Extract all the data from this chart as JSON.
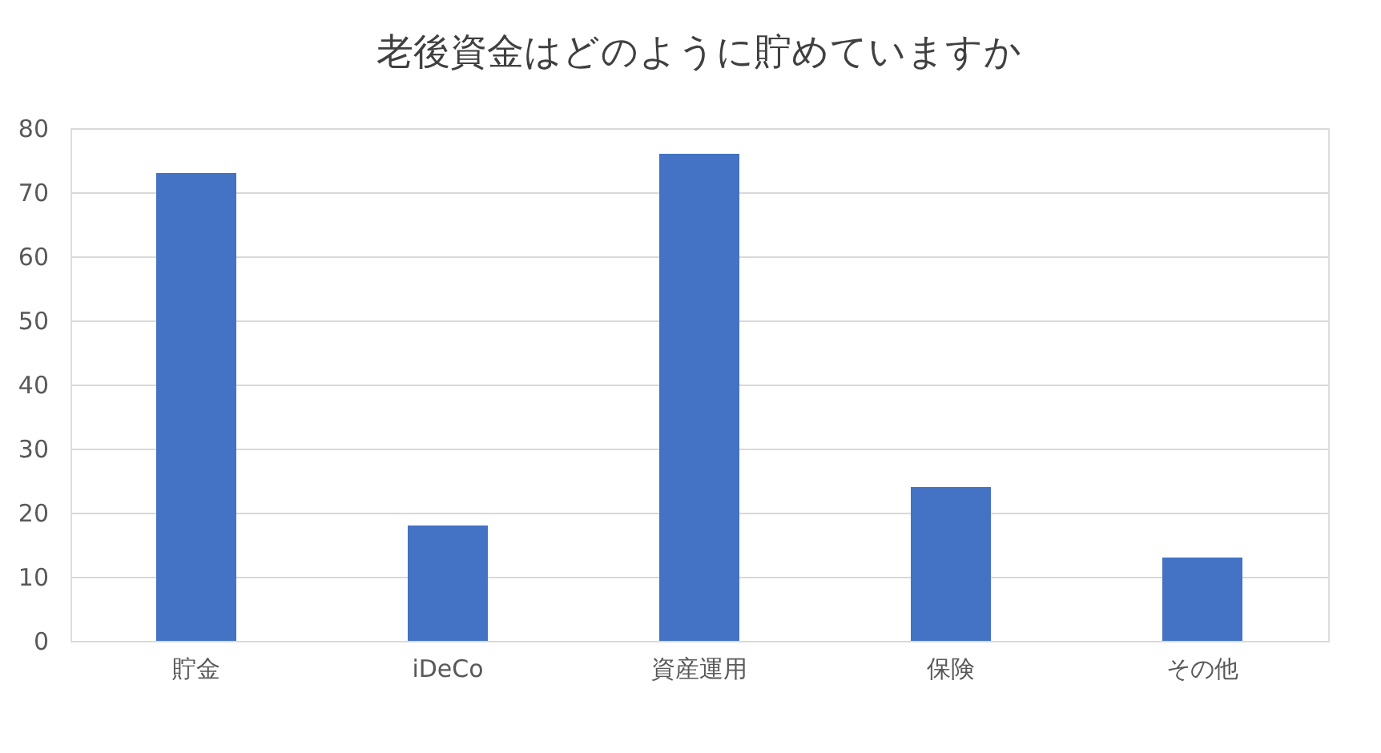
{
  "chart_data": {
    "type": "bar",
    "title": "老後資金はどのように貯めていますか",
    "categories": [
      "貯金",
      "iDeCo",
      "資産運用",
      "保険",
      "その他"
    ],
    "values": [
      73,
      18,
      76,
      24,
      13
    ],
    "color": "#4472c4",
    "ylim": [
      0,
      80
    ],
    "yticks": [
      0,
      10,
      20,
      30,
      40,
      50,
      60,
      70,
      80
    ],
    "grid": "y"
  }
}
